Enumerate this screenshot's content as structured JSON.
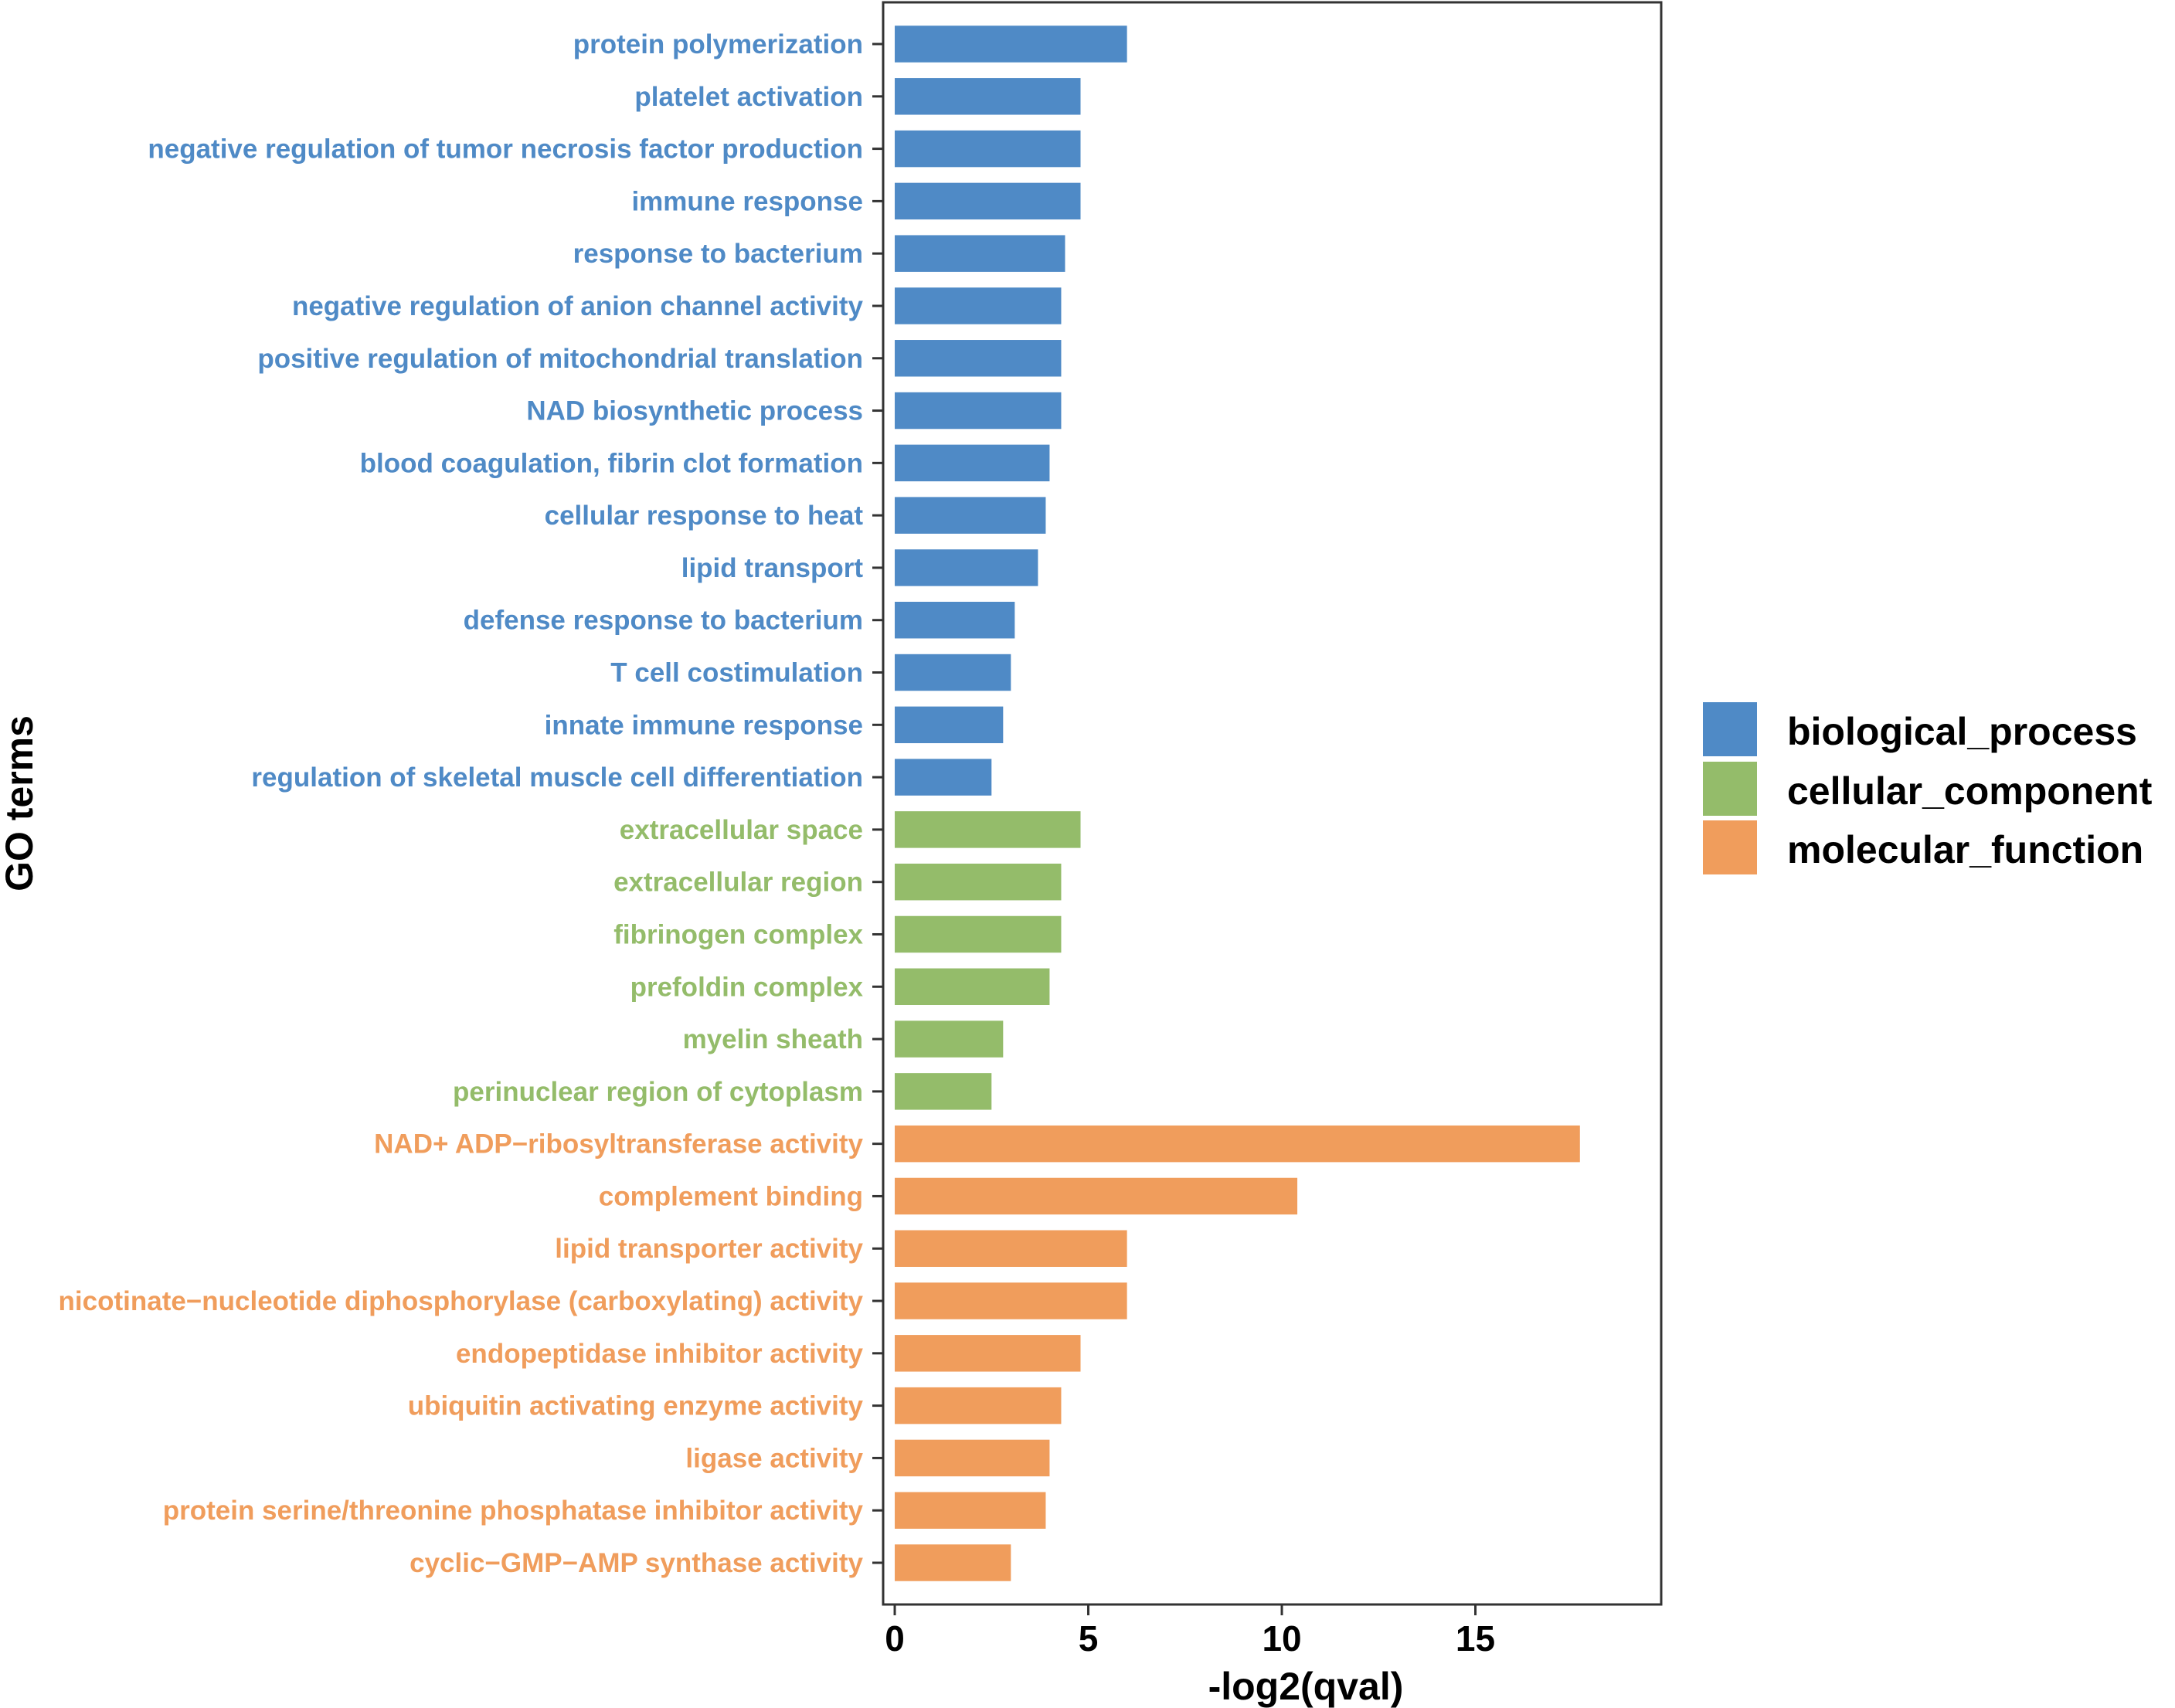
{
  "chart_data": {
    "type": "bar",
    "orientation": "horizontal",
    "title": "",
    "xlabel": "-log2(qval)",
    "ylabel": "GO terms",
    "xlim": [
      -0.3,
      19.8
    ],
    "xticks": [
      0,
      5,
      10,
      15
    ],
    "grid": false,
    "legend_position": "right",
    "colors": {
      "biological_process": "#4f8ac6",
      "cellular_component": "#94bc6a",
      "molecular_function": "#f09d5c"
    },
    "legend": [
      "biological_process",
      "cellular_component",
      "molecular_function"
    ],
    "bars": [
      {
        "label": "protein polymerization",
        "value": 6.0,
        "group": "biological_process"
      },
      {
        "label": "platelet activation",
        "value": 4.8,
        "group": "biological_process"
      },
      {
        "label": "negative regulation of tumor necrosis factor production",
        "value": 4.8,
        "group": "biological_process"
      },
      {
        "label": "immune response",
        "value": 4.8,
        "group": "biological_process"
      },
      {
        "label": "response to bacterium",
        "value": 4.4,
        "group": "biological_process"
      },
      {
        "label": "negative regulation of anion channel activity",
        "value": 4.3,
        "group": "biological_process"
      },
      {
        "label": "positive regulation of mitochondrial translation",
        "value": 4.3,
        "group": "biological_process"
      },
      {
        "label": "NAD biosynthetic process",
        "value": 4.3,
        "group": "biological_process"
      },
      {
        "label": "blood coagulation, fibrin clot formation",
        "value": 4.0,
        "group": "biological_process"
      },
      {
        "label": "cellular response to heat",
        "value": 3.9,
        "group": "biological_process"
      },
      {
        "label": "lipid transport",
        "value": 3.7,
        "group": "biological_process"
      },
      {
        "label": "defense response to bacterium",
        "value": 3.1,
        "group": "biological_process"
      },
      {
        "label": "T cell costimulation",
        "value": 3.0,
        "group": "biological_process"
      },
      {
        "label": "innate immune response",
        "value": 2.8,
        "group": "biological_process"
      },
      {
        "label": "regulation of skeletal muscle cell differentiation",
        "value": 2.5,
        "group": "biological_process"
      },
      {
        "label": "extracellular space",
        "value": 4.8,
        "group": "cellular_component"
      },
      {
        "label": "extracellular region",
        "value": 4.3,
        "group": "cellular_component"
      },
      {
        "label": "fibrinogen complex",
        "value": 4.3,
        "group": "cellular_component"
      },
      {
        "label": "prefoldin complex",
        "value": 4.0,
        "group": "cellular_component"
      },
      {
        "label": "myelin sheath",
        "value": 2.8,
        "group": "cellular_component"
      },
      {
        "label": "perinuclear region of cytoplasm",
        "value": 2.5,
        "group": "cellular_component"
      },
      {
        "label": "NAD+ ADP−ribosyltransferase activity",
        "value": 17.7,
        "group": "molecular_function"
      },
      {
        "label": "complement binding",
        "value": 10.4,
        "group": "molecular_function"
      },
      {
        "label": "lipid transporter activity",
        "value": 6.0,
        "group": "molecular_function"
      },
      {
        "label": "nicotinate−nucleotide diphosphorylase (carboxylating) activity",
        "value": 6.0,
        "group": "molecular_function"
      },
      {
        "label": "endopeptidase inhibitor activity",
        "value": 4.8,
        "group": "molecular_function"
      },
      {
        "label": "ubiquitin activating enzyme activity",
        "value": 4.3,
        "group": "molecular_function"
      },
      {
        "label": "ligase activity",
        "value": 4.0,
        "group": "molecular_function"
      },
      {
        "label": "protein serine/threonine phosphatase inhibitor activity",
        "value": 3.9,
        "group": "molecular_function"
      },
      {
        "label": "cyclic−GMP−AMP synthase activity",
        "value": 3.0,
        "group": "molecular_function"
      }
    ]
  }
}
